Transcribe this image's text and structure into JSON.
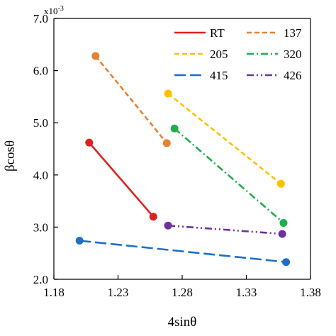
{
  "chart_data": {
    "type": "line",
    "xlabel": "4sinθ",
    "ylabel": "βcosθ",
    "y_multiplier": "x10",
    "y_multiplier_exp": "-3",
    "xlim": [
      1.18,
      1.38
    ],
    "ylim": [
      2.0,
      7.0
    ],
    "xticks": [
      "1.18",
      "1.23",
      "1.28",
      "1.33",
      "1.38"
    ],
    "yticks": [
      "2.0",
      "3.0",
      "4.0",
      "5.0",
      "6.0",
      "7.0"
    ],
    "grid": false,
    "legend_placement": "top-right, two columns",
    "series": [
      {
        "name": "RT",
        "color": "#e02020",
        "dash": "solid",
        "x": [
          1.2075,
          1.2575
        ],
        "y": [
          4.62,
          3.2
        ]
      },
      {
        "name": "137",
        "color": "#e8802e",
        "dash": "dash",
        "x": [
          1.2125,
          1.268
        ],
        "y": [
          6.28,
          4.61
        ]
      },
      {
        "name": "205",
        "color": "#ffc000",
        "dash": "dash",
        "x": [
          1.269,
          1.357
        ],
        "y": [
          5.56,
          3.83
        ]
      },
      {
        "name": "320",
        "color": "#1fae4b",
        "dash": "dashdot",
        "x": [
          1.274,
          1.359
        ],
        "y": [
          4.89,
          3.08
        ]
      },
      {
        "name": "415",
        "color": "#1f6fc5",
        "dash": "longdash",
        "x": [
          1.2,
          1.361
        ],
        "y": [
          2.74,
          2.33
        ]
      },
      {
        "name": "426",
        "color": "#7030a0",
        "dash": "dashdotdot",
        "x": [
          1.269,
          1.358
        ],
        "y": [
          3.03,
          2.87
        ]
      }
    ]
  }
}
